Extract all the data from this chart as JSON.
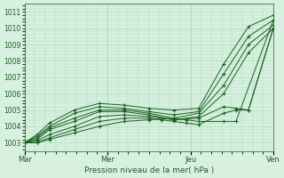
{
  "title": "",
  "xlabel": "Pression niveau de la mer( hPa )",
  "ylabel": "",
  "bg_color": "#d8f0e0",
  "grid_color": "#aaddbb",
  "line_color": "#1a6020",
  "ylim": [
    1002.5,
    1011.5
  ],
  "yticks": [
    1003,
    1004,
    1005,
    1006,
    1007,
    1008,
    1009,
    1010,
    1011
  ],
  "xtick_labels": [
    "Mar",
    "Mer",
    "Jeu",
    "Ven"
  ],
  "xtick_positions": [
    0.0,
    0.333,
    0.667,
    1.0
  ],
  "series": [
    {
      "x": [
        0.0,
        0.05,
        0.1,
        0.2,
        0.3,
        0.4,
        0.5,
        0.6,
        0.7,
        0.8,
        0.9,
        1.0
      ],
      "y": [
        1003.0,
        1003.5,
        1004.2,
        1005.0,
        1005.4,
        1005.3,
        1005.1,
        1005.0,
        1005.1,
        1007.8,
        1010.1,
        1010.8
      ]
    },
    {
      "x": [
        0.0,
        0.05,
        0.1,
        0.2,
        0.3,
        0.4,
        0.5,
        0.6,
        0.7,
        0.8,
        0.9,
        1.0
      ],
      "y": [
        1003.0,
        1003.4,
        1004.0,
        1004.8,
        1005.2,
        1005.1,
        1004.9,
        1004.7,
        1004.9,
        1007.2,
        1009.5,
        1010.5
      ]
    },
    {
      "x": [
        0.0,
        0.05,
        0.1,
        0.2,
        0.3,
        0.4,
        0.5,
        0.6,
        0.7,
        0.8,
        0.9,
        1.0
      ],
      "y": [
        1003.0,
        1003.3,
        1003.9,
        1004.5,
        1005.0,
        1005.0,
        1004.8,
        1004.5,
        1004.8,
        1006.5,
        1009.0,
        1010.2
      ]
    },
    {
      "x": [
        0.0,
        0.05,
        0.1,
        0.2,
        0.3,
        0.4,
        0.5,
        0.6,
        0.7,
        0.8,
        0.9,
        1.0
      ],
      "y": [
        1003.0,
        1003.2,
        1003.8,
        1004.3,
        1004.9,
        1004.9,
        1004.7,
        1004.4,
        1004.6,
        1006.0,
        1008.5,
        1010.0
      ]
    },
    {
      "x": [
        0.0,
        0.05,
        0.1,
        0.2,
        0.3,
        0.4,
        0.5,
        0.6,
        0.7,
        0.8,
        0.85,
        0.9,
        1.0
      ],
      "y": [
        1003.0,
        1003.1,
        1003.5,
        1004.0,
        1004.6,
        1004.7,
        1004.6,
        1004.4,
        1004.5,
        1005.2,
        1005.1,
        1005.0,
        1010.0
      ]
    },
    {
      "x": [
        0.0,
        0.05,
        0.1,
        0.2,
        0.3,
        0.4,
        0.5,
        0.55,
        0.6,
        0.65,
        0.7,
        0.8,
        0.85,
        0.9,
        1.0
      ],
      "y": [
        1003.0,
        1003.0,
        1003.3,
        1003.8,
        1004.3,
        1004.5,
        1004.5,
        1004.4,
        1004.3,
        1004.2,
        1004.1,
        1004.8,
        1005.0,
        1005.0,
        1010.0
      ]
    },
    {
      "x": [
        0.0,
        0.05,
        0.1,
        0.2,
        0.3,
        0.4,
        0.5,
        0.6,
        0.65,
        0.7,
        0.8,
        0.85,
        1.0
      ],
      "y": [
        1003.0,
        1003.0,
        1003.2,
        1003.6,
        1004.0,
        1004.3,
        1004.4,
        1004.5,
        1004.4,
        1004.3,
        1004.3,
        1004.3,
        1010.5
      ]
    }
  ]
}
